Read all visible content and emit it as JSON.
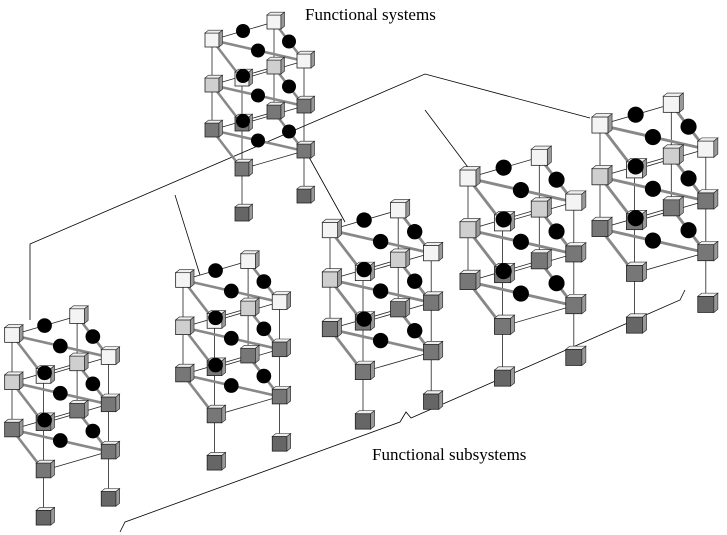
{
  "labels": {
    "systems": "Functional systems",
    "subsystems": "Functional subsystems"
  }
}
